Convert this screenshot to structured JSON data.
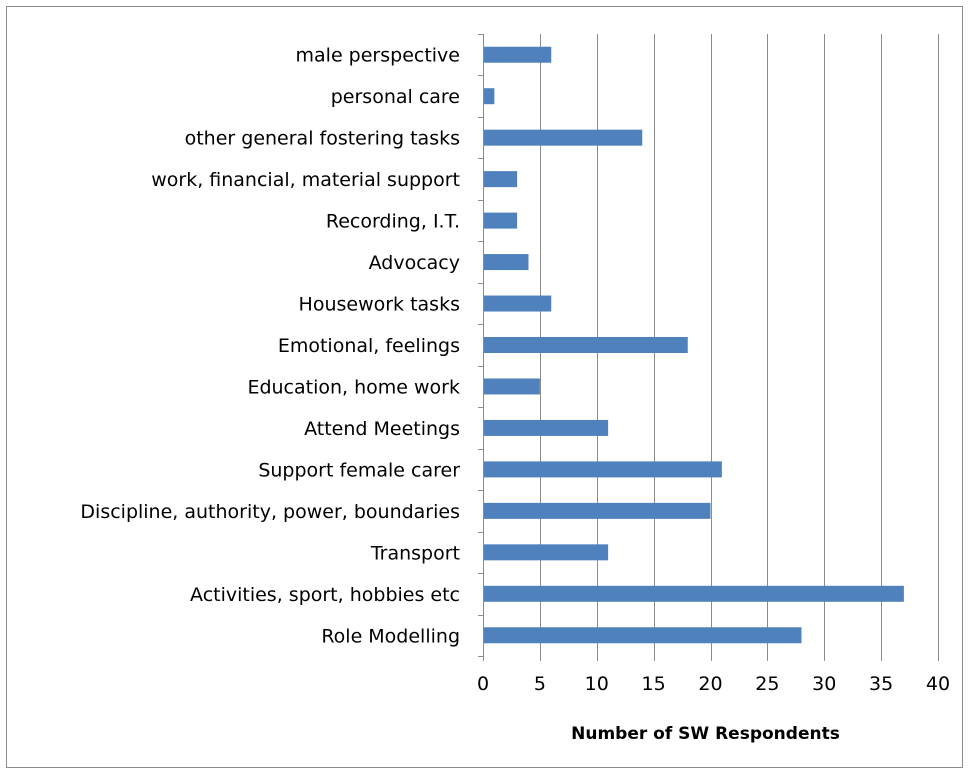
{
  "chart_data": {
    "type": "bar",
    "orientation": "horizontal",
    "categories": [
      "male perspective",
      "personal care",
      "other general fostering tasks",
      "work, financial, material support",
      "Recording, I.T.",
      "Advocacy",
      "Housework tasks",
      "Emotional, feelings",
      "Education, home work",
      "Attend Meetings",
      "Support female carer",
      "Discipline, authority, power, boundaries",
      "Transport",
      "Activities, sport, hobbies etc",
      "Role Modelling"
    ],
    "values": [
      6,
      1,
      14,
      3,
      3,
      4,
      6,
      18,
      5,
      11,
      21,
      20,
      11,
      37,
      28
    ],
    "xlabel": "Number of SW Respondents",
    "xlim": [
      0,
      40
    ],
    "xticks": [
      "0",
      "5",
      "10",
      "15",
      "20",
      "25",
      "30",
      "35",
      "40"
    ],
    "grid": "vertical major gridlines",
    "legend": "none",
    "bar_color": "#4f81bd",
    "grid_color": "#8c8c8c"
  }
}
